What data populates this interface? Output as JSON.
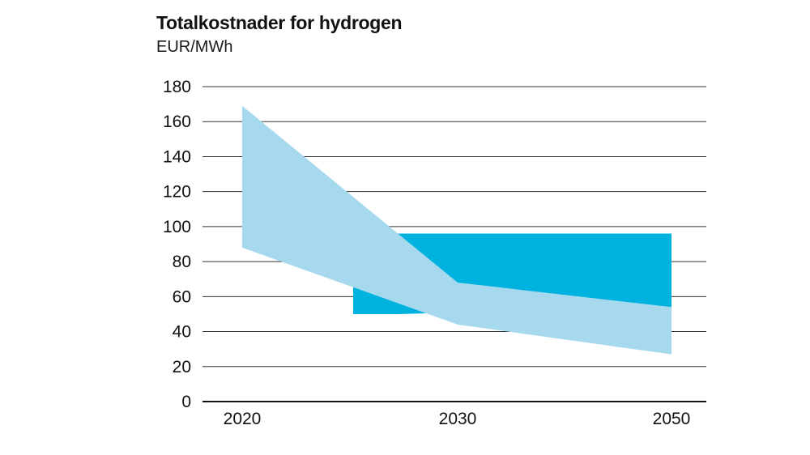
{
  "chart_data": {
    "type": "area",
    "title": "Totalkostnader for hydrogen",
    "unit_label": "EUR/MWh",
    "xlabel": "",
    "ylabel": "",
    "ylim": [
      0,
      180
    ],
    "y_ticks": [
      0,
      20,
      40,
      60,
      80,
      100,
      120,
      140,
      160,
      180
    ],
    "x_ticks": [
      "2020",
      "2030",
      "2050"
    ],
    "grid": true,
    "colors": {
      "light_band": "#a6d8ee",
      "dark_band": "#00b2e0",
      "grid": "#333333",
      "axis": "#111111"
    },
    "bands": [
      {
        "style": "dark_band",
        "points": [
          {
            "x": "2025",
            "low": 50,
            "high": 65
          },
          {
            "x": "2027",
            "low": 50,
            "high": 96
          },
          {
            "x": "2050",
            "low": 54,
            "high": 96
          }
        ]
      },
      {
        "style": "light_band",
        "points": [
          {
            "x": "2020",
            "low": 88,
            "high": 169
          },
          {
            "x": "2030",
            "low": 44,
            "high": 68
          },
          {
            "x": "2050",
            "low": 27,
            "high": 54
          }
        ]
      }
    ]
  }
}
